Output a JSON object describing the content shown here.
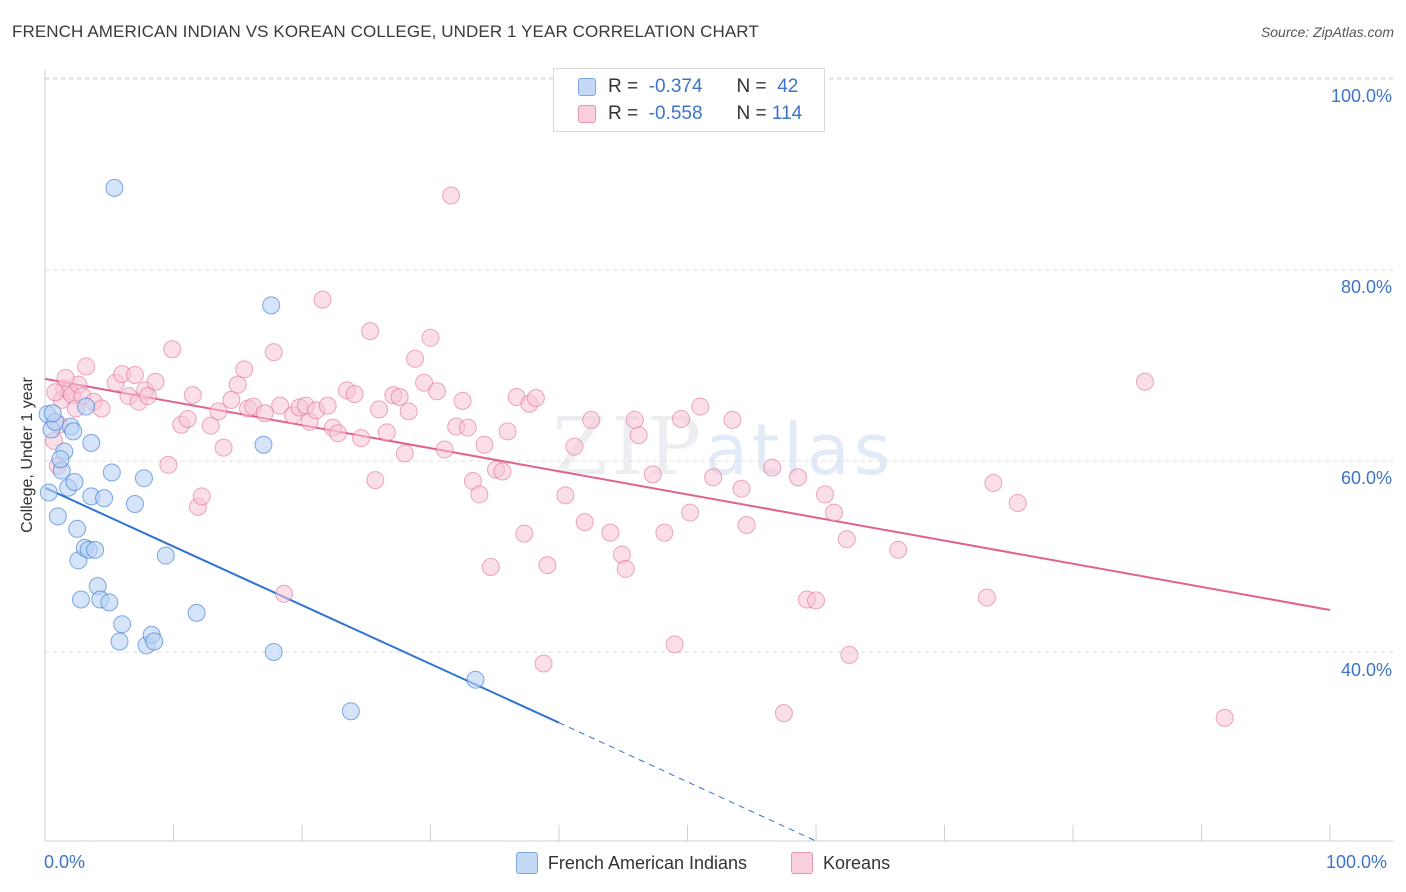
{
  "title": "FRENCH AMERICAN INDIAN VS KOREAN COLLEGE, UNDER 1 YEAR CORRELATION CHART",
  "source": "Source: ZipAtlas.com",
  "watermark": {
    "zip": "ZIP",
    "atlas": "atlas"
  },
  "legend": {
    "r_label": "R =",
    "n_label": "N =",
    "rows": [
      {
        "r": "-0.374",
        "n": "42"
      },
      {
        "r": "-0.558",
        "n": "114"
      }
    ]
  },
  "chart_data": {
    "type": "scatter",
    "title": "FRENCH AMERICAN INDIAN VS KOREAN COLLEGE, UNDER 1 YEAR CORRELATION CHART",
    "xlabel": "",
    "ylabel": "College, Under 1 year",
    "xlim": [
      0,
      100
    ],
    "ylim": [
      20,
      102
    ],
    "x_tick_labels": [
      "0.0%",
      "100.0%"
    ],
    "y_tick_labels": [
      "40.0%",
      "60.0%",
      "80.0%",
      "100.0%"
    ],
    "y_ticks": [
      40,
      60,
      80,
      100
    ],
    "grid": "horizontal dashed",
    "legend_position": "top-center",
    "colors": {
      "blue": "#2f74d0",
      "blue_fill": "#b9d2f3",
      "pink": "#e0628f",
      "pink_fill": "#f7c4d6"
    },
    "series": [
      {
        "name": "French American Indians",
        "color": "#2f74d0",
        "R": -0.374,
        "N": 42,
        "trend": {
          "x": [
            0,
            40
          ],
          "y": [
            57.2,
            32.6
          ],
          "dashed_to": [
            60,
            20.2
          ]
        },
        "points": [
          [
            0.2,
            64.9
          ],
          [
            0.5,
            63.3
          ],
          [
            0.8,
            64.1
          ],
          [
            0.3,
            56.7
          ],
          [
            1.0,
            54.2
          ],
          [
            1.3,
            59.0
          ],
          [
            1.5,
            61.0
          ],
          [
            1.8,
            57.2
          ],
          [
            2.0,
            63.6
          ],
          [
            2.2,
            63.1
          ],
          [
            2.3,
            57.8
          ],
          [
            2.5,
            52.9
          ],
          [
            2.6,
            49.6
          ],
          [
            2.8,
            45.5
          ],
          [
            3.1,
            50.9
          ],
          [
            3.4,
            50.7
          ],
          [
            3.2,
            65.7
          ],
          [
            3.6,
            61.9
          ],
          [
            3.6,
            56.3
          ],
          [
            3.9,
            50.7
          ],
          [
            4.1,
            46.9
          ],
          [
            4.3,
            45.5
          ],
          [
            4.6,
            56.1
          ],
          [
            5.0,
            45.2
          ],
          [
            5.2,
            58.8
          ],
          [
            5.4,
            88.6
          ],
          [
            5.8,
            41.1
          ],
          [
            6.0,
            42.9
          ],
          [
            7.0,
            55.5
          ],
          [
            7.7,
            58.2
          ],
          [
            7.9,
            40.7
          ],
          [
            8.3,
            41.8
          ],
          [
            8.5,
            41.1
          ],
          [
            9.4,
            50.1
          ],
          [
            11.8,
            44.1
          ],
          [
            17.0,
            61.7
          ],
          [
            17.6,
            76.3
          ],
          [
            17.8,
            40.0
          ],
          [
            23.8,
            33.8
          ],
          [
            33.5,
            37.1
          ],
          [
            0.6,
            65.0
          ],
          [
            1.2,
            60.2
          ]
        ]
      },
      {
        "name": "Koreans",
        "color": "#e0628f",
        "R": -0.558,
        "N": 114,
        "trend": {
          "x": [
            0,
            100
          ],
          "y": [
            68.6,
            44.4
          ]
        },
        "points": [
          [
            0.7,
            62.1
          ],
          [
            1.0,
            59.5
          ],
          [
            1.1,
            63.8
          ],
          [
            1.3,
            66.4
          ],
          [
            1.5,
            67.6
          ],
          [
            1.9,
            67.3
          ],
          [
            2.1,
            66.9
          ],
          [
            2.4,
            65.5
          ],
          [
            2.6,
            68.0
          ],
          [
            2.9,
            66.8
          ],
          [
            3.2,
            69.9
          ],
          [
            3.8,
            66.2
          ],
          [
            4.4,
            65.5
          ],
          [
            5.5,
            68.2
          ],
          [
            6.0,
            69.1
          ],
          [
            6.5,
            66.8
          ],
          [
            7.0,
            69.0
          ],
          [
            7.3,
            66.2
          ],
          [
            7.8,
            67.4
          ],
          [
            8.0,
            66.8
          ],
          [
            8.6,
            68.3
          ],
          [
            9.6,
            59.6
          ],
          [
            9.9,
            71.7
          ],
          [
            10.6,
            63.8
          ],
          [
            11.1,
            64.4
          ],
          [
            11.5,
            66.9
          ],
          [
            11.9,
            55.2
          ],
          [
            12.2,
            56.3
          ],
          [
            12.9,
            63.7
          ],
          [
            13.5,
            65.2
          ],
          [
            13.9,
            61.4
          ],
          [
            14.5,
            66.4
          ],
          [
            15.0,
            68.0
          ],
          [
            15.5,
            69.6
          ],
          [
            15.8,
            65.5
          ],
          [
            16.2,
            65.7
          ],
          [
            17.1,
            65.0
          ],
          [
            17.8,
            71.4
          ],
          [
            18.3,
            65.8
          ],
          [
            18.6,
            46.1
          ],
          [
            19.3,
            64.8
          ],
          [
            19.8,
            65.6
          ],
          [
            20.3,
            65.8
          ],
          [
            20.6,
            64.1
          ],
          [
            21.1,
            65.3
          ],
          [
            21.6,
            76.9
          ],
          [
            22.0,
            65.8
          ],
          [
            22.4,
            63.5
          ],
          [
            22.8,
            62.9
          ],
          [
            23.5,
            67.4
          ],
          [
            24.1,
            67.0
          ],
          [
            24.6,
            62.4
          ],
          [
            25.3,
            73.6
          ],
          [
            25.7,
            58.0
          ],
          [
            26.0,
            65.4
          ],
          [
            26.6,
            63.0
          ],
          [
            27.1,
            66.9
          ],
          [
            27.6,
            66.7
          ],
          [
            28.0,
            60.8
          ],
          [
            28.3,
            65.2
          ],
          [
            28.8,
            70.7
          ],
          [
            29.5,
            68.2
          ],
          [
            30.0,
            72.9
          ],
          [
            30.5,
            67.3
          ],
          [
            31.1,
            61.2
          ],
          [
            31.6,
            87.8
          ],
          [
            32.0,
            63.6
          ],
          [
            32.5,
            66.3
          ],
          [
            32.9,
            63.5
          ],
          [
            33.3,
            57.9
          ],
          [
            33.8,
            56.5
          ],
          [
            34.2,
            61.7
          ],
          [
            34.7,
            48.9
          ],
          [
            35.1,
            59.1
          ],
          [
            35.6,
            58.9
          ],
          [
            36.0,
            63.1
          ],
          [
            36.7,
            66.7
          ],
          [
            37.3,
            52.4
          ],
          [
            37.7,
            66.0
          ],
          [
            38.2,
            66.6
          ],
          [
            38.8,
            38.8
          ],
          [
            39.1,
            49.1
          ],
          [
            40.5,
            56.4
          ],
          [
            41.2,
            61.5
          ],
          [
            42.0,
            53.6
          ],
          [
            42.5,
            64.3
          ],
          [
            44.0,
            52.5
          ],
          [
            44.9,
            50.2
          ],
          [
            45.2,
            48.7
          ],
          [
            45.9,
            64.3
          ],
          [
            46.2,
            62.7
          ],
          [
            47.3,
            58.6
          ],
          [
            48.2,
            52.5
          ],
          [
            49.0,
            40.8
          ],
          [
            49.5,
            64.4
          ],
          [
            50.2,
            54.6
          ],
          [
            51.0,
            65.7
          ],
          [
            52.0,
            58.3
          ],
          [
            53.5,
            64.3
          ],
          [
            54.2,
            57.1
          ],
          [
            54.6,
            53.3
          ],
          [
            56.6,
            59.3
          ],
          [
            57.5,
            33.6
          ],
          [
            58.6,
            58.3
          ],
          [
            59.3,
            45.5
          ],
          [
            60.0,
            45.4
          ],
          [
            60.7,
            56.5
          ],
          [
            61.4,
            54.6
          ],
          [
            62.4,
            51.8
          ],
          [
            62.6,
            39.7
          ],
          [
            66.4,
            50.7
          ],
          [
            73.3,
            45.7
          ],
          [
            73.8,
            57.7
          ],
          [
            75.7,
            55.6
          ],
          [
            85.6,
            68.3
          ],
          [
            91.8,
            33.1
          ],
          [
            1.6,
            68.7
          ],
          [
            0.8,
            67.2
          ]
        ]
      }
    ]
  }
}
